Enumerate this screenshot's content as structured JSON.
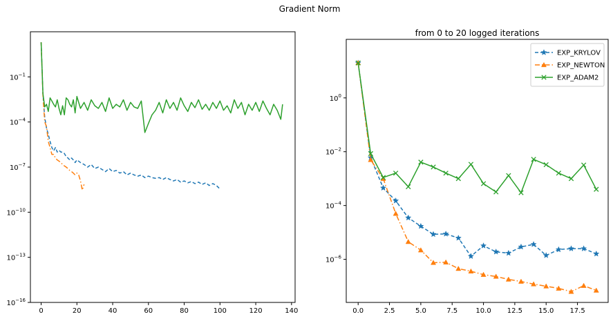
{
  "suptitle": "Gradient Norm",
  "colors": {
    "EXP_KRYLOV": "#1f77b4",
    "EXP_NEWTON": "#ff7f0e",
    "EXP_ADAM2": "#2ca02c"
  },
  "chart_data": [
    {
      "type": "line",
      "title": "",
      "xlabel": "",
      "ylabel": "",
      "xlim": [
        -6,
        142
      ],
      "ylim": [
        1e-16,
        100.0
      ],
      "yscale": "log",
      "xticks": [
        0,
        20,
        40,
        60,
        80,
        100,
        120,
        140
      ],
      "yticks": [
        {
          "base": "10",
          "exp": "−1",
          "value": 0.1
        },
        {
          "base": "10",
          "exp": "−4",
          "value": 0.0001
        },
        {
          "base": "10",
          "exp": "−7",
          "value": 1e-07
        },
        {
          "base": "10",
          "exp": "−10",
          "value": 1e-10
        },
        {
          "base": "10",
          "exp": "−13",
          "value": 1e-13
        },
        {
          "base": "10",
          "exp": "−16",
          "value": 1e-16
        }
      ],
      "grid": false,
      "legend": "none",
      "series": [
        {
          "key": "EXP_KRYLOV",
          "style": "dashed",
          "x": [
            0,
            1,
            2,
            3,
            4,
            5,
            6,
            7,
            8,
            9,
            10,
            11,
            12,
            13,
            14,
            15,
            16,
            17,
            18,
            19,
            20,
            22,
            24,
            26,
            28,
            30,
            32,
            34,
            36,
            38,
            40,
            42,
            44,
            46,
            48,
            50,
            52,
            54,
            56,
            58,
            60,
            62,
            64,
            66,
            68,
            70,
            72,
            74,
            76,
            78,
            80,
            82,
            84,
            86,
            88,
            90,
            92,
            94,
            96,
            98,
            100
          ],
          "y": [
            20,
            0.008,
            0.0002,
            4e-05,
            1.5e-05,
            5e-06,
            2e-06,
            1.2e-06,
            2e-06,
            1e-06,
            1.3e-06,
            1e-06,
            1e-06,
            8e-07,
            5e-07,
            4e-07,
            3e-07,
            4e-07,
            3e-07,
            2e-07,
            3e-07,
            2e-07,
            1.5e-07,
            1e-07,
            1.5e-07,
            8e-08,
            1e-07,
            7e-08,
            5e-08,
            8e-08,
            5e-08,
            6e-08,
            4e-08,
            5e-08,
            3e-08,
            4e-08,
            3e-08,
            2.5e-08,
            3e-08,
            2e-08,
            2.5e-08,
            2e-08,
            1.8e-08,
            2e-08,
            1.5e-08,
            2e-08,
            1.5e-08,
            1.2e-08,
            1.5e-08,
            1e-08,
            1.2e-08,
            9e-09,
            1.1e-08,
            8e-09,
            1e-08,
            7e-09,
            9e-09,
            6e-09,
            8e-09,
            6e-09,
            3.5e-09
          ]
        },
        {
          "key": "EXP_NEWTON",
          "style": "dashdot",
          "x": [
            0,
            1,
            2,
            3,
            4,
            5,
            6,
            7,
            8,
            9,
            10,
            11,
            12,
            13,
            14,
            15,
            16,
            17,
            18,
            19,
            20,
            21,
            22,
            23,
            24
          ],
          "y": [
            20,
            0.006,
            0.0001,
            5e-05,
            5e-06,
            2e-06,
            7e-07,
            7e-07,
            4e-07,
            3e-07,
            2.5e-07,
            2e-07,
            1.5e-07,
            1.2e-07,
            1e-07,
            8e-08,
            6e-08,
            5e-08,
            4e-08,
            3e-08,
            4e-08,
            3e-08,
            1.2e-08,
            3e-09,
            7e-09
          ]
        },
        {
          "key": "EXP_ADAM2",
          "style": "solid",
          "x": [
            0,
            1,
            2,
            3,
            4,
            5,
            6,
            7,
            8,
            9,
            10,
            11,
            12,
            13,
            14,
            15,
            16,
            17,
            18,
            19,
            20,
            22,
            24,
            26,
            28,
            30,
            32,
            34,
            36,
            38,
            40,
            42,
            44,
            46,
            48,
            50,
            52,
            54,
            56,
            58,
            60,
            62,
            64,
            66,
            68,
            70,
            72,
            74,
            76,
            78,
            80,
            82,
            84,
            86,
            88,
            90,
            92,
            94,
            96,
            98,
            100,
            102,
            104,
            106,
            108,
            110,
            112,
            114,
            116,
            118,
            120,
            122,
            124,
            126,
            128,
            130,
            132,
            134,
            135
          ],
          "y": [
            20,
            0.008,
            0.001,
            0.0015,
            0.0005,
            0.004,
            0.0025,
            0.0015,
            0.001,
            0.003,
            0.0008,
            0.0003,
            0.0012,
            0.0003,
            0.004,
            0.003,
            0.0015,
            0.001,
            0.003,
            0.0004,
            0.005,
            0.0008,
            0.002,
            0.0006,
            0.003,
            0.0012,
            0.0008,
            0.002,
            0.0005,
            0.004,
            0.0008,
            0.0015,
            0.001,
            0.003,
            0.0006,
            0.002,
            0.001,
            0.0008,
            0.0025,
            2e-05,
            8e-05,
            0.0003,
            0.0006,
            0.002,
            0.0004,
            0.003,
            0.0008,
            0.002,
            0.0006,
            0.004,
            0.0012,
            0.0005,
            0.002,
            0.0009,
            0.003,
            0.0007,
            0.0015,
            0.0006,
            0.002,
            0.0008,
            0.0025,
            0.0006,
            0.0012,
            0.0004,
            0.003,
            0.0008,
            0.002,
            0.0003,
            0.0015,
            0.0006,
            0.002,
            0.0005,
            0.0025,
            0.0008,
            0.0003,
            0.0015,
            0.0006,
            0.00015,
            0.0015
          ]
        }
      ]
    },
    {
      "type": "line",
      "title": "from 0 to 20 logged iterations",
      "xlabel": "",
      "ylabel": "",
      "xlim": [
        -0.95,
        19.95
      ],
      "ylim": [
        2.5e-08,
        150
      ],
      "yscale": "log",
      "xticks": [
        {
          "value": 0,
          "label": "0.0"
        },
        {
          "value": 2.5,
          "label": "2.5"
        },
        {
          "value": 5,
          "label": "5.0"
        },
        {
          "value": 7.5,
          "label": "7.5"
        },
        {
          "value": 10,
          "label": "10.0"
        },
        {
          "value": 12.5,
          "label": "12.5"
        },
        {
          "value": 15,
          "label": "15.0"
        },
        {
          "value": 17.5,
          "label": "17.5"
        }
      ],
      "yticks": [
        {
          "base": "10",
          "exp": "0",
          "value": 1
        },
        {
          "base": "10",
          "exp": "−2",
          "value": 0.01
        },
        {
          "base": "10",
          "exp": "−4",
          "value": 0.0001
        },
        {
          "base": "10",
          "exp": "−6",
          "value": 1e-06
        }
      ],
      "grid": false,
      "legend": "top-right",
      "series": [
        {
          "key": "EXP_KRYLOV",
          "name": "EXP_KRYLOV",
          "style": "dashed",
          "marker": "star",
          "x": [
            0,
            1,
            2,
            3,
            4,
            5,
            6,
            7,
            8,
            9,
            10,
            11,
            12,
            13,
            14,
            15,
            16,
            17,
            18,
            19
          ],
          "y": [
            20,
            0.006,
            0.00045,
            0.00015,
            3.5e-05,
            1.7e-05,
            8.5e-06,
            8.8e-06,
            6.2e-06,
            1.3e-06,
            3.2e-06,
            1.9e-06,
            1.7e-06,
            2.9e-06,
            3.6e-06,
            1.4e-06,
            2.3e-06,
            2.5e-06,
            2.5e-06,
            1.6e-06
          ]
        },
        {
          "key": "EXP_NEWTON",
          "name": "EXP_NEWTON",
          "style": "dashdot",
          "marker": "triangle",
          "x": [
            0,
            1,
            2,
            3,
            4,
            5,
            6,
            7,
            8,
            9,
            10,
            11,
            12,
            13,
            14,
            15,
            16,
            17,
            18,
            19
          ],
          "y": [
            20,
            0.005,
            0.001,
            5e-05,
            4.5e-06,
            2.2e-06,
            7.5e-07,
            7.8e-07,
            4.5e-07,
            3.6e-07,
            2.7e-07,
            2.3e-07,
            1.8e-07,
            1.5e-07,
            1.2e-07,
            1e-07,
            8.3e-08,
            6.3e-08,
            1.05e-07,
            7e-08
          ]
        },
        {
          "key": "EXP_ADAM2",
          "name": "EXP_ADAM2",
          "style": "solid",
          "marker": "x",
          "x": [
            0,
            1,
            2,
            3,
            4,
            5,
            6,
            7,
            8,
            9,
            10,
            11,
            12,
            13,
            14,
            15,
            16,
            17,
            18,
            19
          ],
          "y": [
            20,
            0.0085,
            0.0011,
            0.0016,
            0.0005,
            0.0041,
            0.0027,
            0.0016,
            0.001,
            0.0034,
            0.00065,
            0.00032,
            0.0013,
            0.0003,
            0.0052,
            0.0033,
            0.0016,
            0.001,
            0.0032,
            0.0004
          ]
        }
      ]
    }
  ]
}
